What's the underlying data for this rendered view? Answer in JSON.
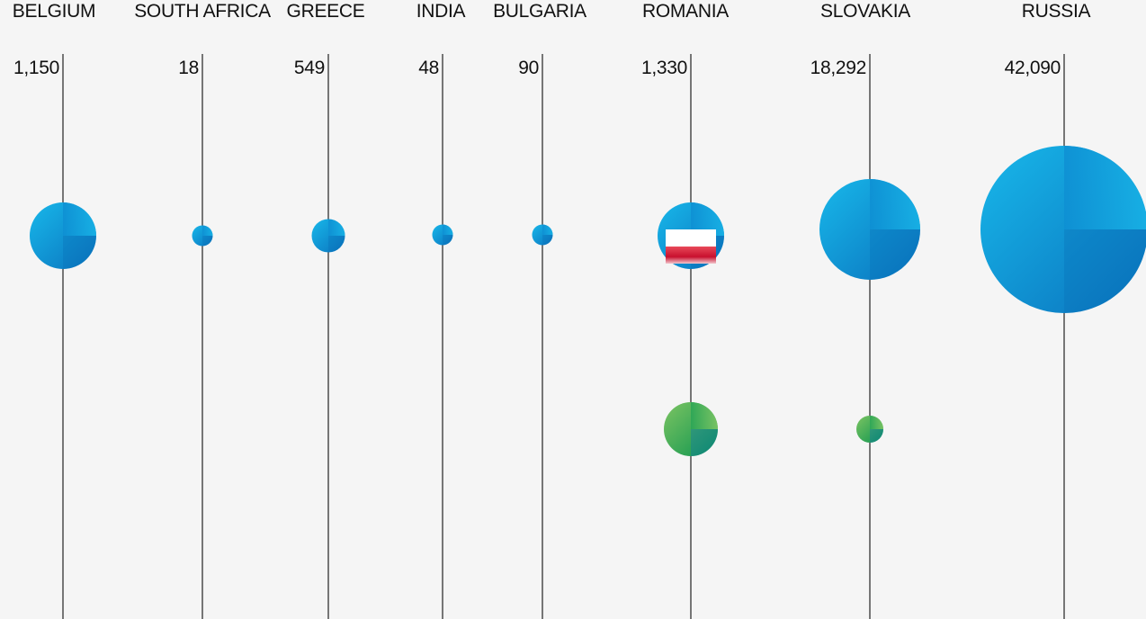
{
  "chart_data": {
    "type": "bubble-timeline",
    "colors": {
      "blue_light": "#16b2e6",
      "blue_dark": "#0a78c2",
      "green_light": "#6fbf5e",
      "green_dark": "#0f9a57",
      "flag_white": "#ffffff",
      "flag_red": "#c8102e",
      "line": "#222222",
      "background": "#f5f5f5"
    },
    "countries": [
      {
        "name": "BELGIUM",
        "value_label": "1,150",
        "value": 1150,
        "blue_size": "medium",
        "green_size": null,
        "flag": false
      },
      {
        "name": "SOUTH AFRICA",
        "value_label": "18",
        "value": 18,
        "blue_size": "tiny",
        "green_size": null,
        "flag": false
      },
      {
        "name": "GREECE",
        "value_label": "549",
        "value": 549,
        "blue_size": "small",
        "green_size": null,
        "flag": false
      },
      {
        "name": "INDIA",
        "value_label": "48",
        "value": 48,
        "blue_size": "tiny",
        "green_size": null,
        "flag": false
      },
      {
        "name": "BULGARIA",
        "value_label": "90",
        "value": 90,
        "blue_size": "tiny",
        "green_size": null,
        "flag": false
      },
      {
        "name": "ROMANIA",
        "value_label": "1,330",
        "value": 1330,
        "blue_size": "medium",
        "green_size": "medium",
        "flag": true
      },
      {
        "name": "SLOVAKIA",
        "value_label": "18,292",
        "value": 18292,
        "blue_size": "large",
        "green_size": "small",
        "flag": false
      },
      {
        "name": "RUSSIA",
        "value_label": "42,090",
        "value": 42090,
        "blue_size": "xlarge",
        "green_size": null,
        "flag": false
      }
    ]
  }
}
